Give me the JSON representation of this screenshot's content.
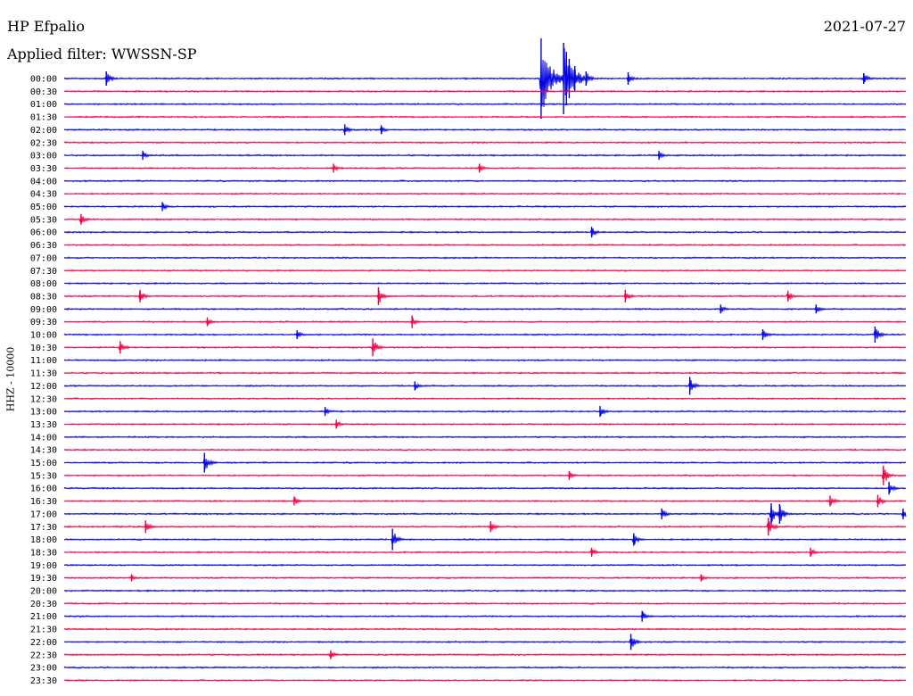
{
  "header": {
    "station": "HP Efpalio",
    "date": "2021-07-27",
    "filter": "Applied filter: WWSSN-SP"
  },
  "chart_data": {
    "type": "line",
    "title": "HP Efpalio",
    "date": "2021-07-27",
    "ylabel": "HHZ - 10000",
    "row_interval_minutes": 30,
    "trace_colors": [
      "#0000dd",
      "#ee0044"
    ],
    "row_labels": [
      "00:00",
      "00:30",
      "01:00",
      "01:30",
      "02:00",
      "02:30",
      "03:00",
      "03:30",
      "04:00",
      "04:30",
      "05:00",
      "05:30",
      "06:00",
      "06:30",
      "07:00",
      "07:30",
      "08:00",
      "08:30",
      "09:00",
      "09:30",
      "10:00",
      "10:30",
      "11:00",
      "11:30",
      "12:00",
      "12:30",
      "13:00",
      "13:30",
      "14:00",
      "14:30",
      "15:00",
      "15:30",
      "16:00",
      "16:30",
      "17:00",
      "17:30",
      "18:00",
      "18:30",
      "19:00",
      "19:30",
      "20:00",
      "20:30",
      "21:00",
      "21:30",
      "22:00",
      "22:30",
      "23:00",
      "23:30"
    ],
    "events": [
      {
        "row": 0,
        "minute": 1.5,
        "amplitude": 8
      },
      {
        "row": 0,
        "minute": 17.0,
        "amplitude": 45
      },
      {
        "row": 0,
        "minute": 17.8,
        "amplitude": 40
      },
      {
        "row": 0,
        "minute": 17.9,
        "amplitude": 30
      },
      {
        "row": 0,
        "minute": 18.0,
        "amplitude": 22
      },
      {
        "row": 0,
        "minute": 18.2,
        "amplitude": 14
      },
      {
        "row": 0,
        "minute": 18.6,
        "amplitude": 8
      },
      {
        "row": 0,
        "minute": 20.1,
        "amplitude": 7
      },
      {
        "row": 0,
        "minute": 28.5,
        "amplitude": 6
      },
      {
        "row": 4,
        "minute": 10.0,
        "amplitude": 6
      },
      {
        "row": 4,
        "minute": 11.3,
        "amplitude": 5
      },
      {
        "row": 6,
        "minute": 2.8,
        "amplitude": 5
      },
      {
        "row": 6,
        "minute": 21.2,
        "amplitude": 5
      },
      {
        "row": 7,
        "minute": 9.6,
        "amplitude": 5
      },
      {
        "row": 7,
        "minute": 14.8,
        "amplitude": 5
      },
      {
        "row": 10,
        "minute": 3.5,
        "amplitude": 5
      },
      {
        "row": 11,
        "minute": 0.6,
        "amplitude": 6
      },
      {
        "row": 12,
        "minute": 18.8,
        "amplitude": 6
      },
      {
        "row": 17,
        "minute": 2.7,
        "amplitude": 7
      },
      {
        "row": 17,
        "minute": 11.2,
        "amplitude": 10
      },
      {
        "row": 17,
        "minute": 20.0,
        "amplitude": 7
      },
      {
        "row": 17,
        "minute": 25.8,
        "amplitude": 6
      },
      {
        "row": 18,
        "minute": 23.4,
        "amplitude": 5
      },
      {
        "row": 18,
        "minute": 26.8,
        "amplitude": 5
      },
      {
        "row": 19,
        "minute": 5.1,
        "amplitude": 5
      },
      {
        "row": 19,
        "minute": 12.4,
        "amplitude": 7
      },
      {
        "row": 20,
        "minute": 8.3,
        "amplitude": 5
      },
      {
        "row": 20,
        "minute": 24.9,
        "amplitude": 6
      },
      {
        "row": 20,
        "minute": 28.9,
        "amplitude": 9
      },
      {
        "row": 21,
        "minute": 2.0,
        "amplitude": 7
      },
      {
        "row": 21,
        "minute": 11.0,
        "amplitude": 10
      },
      {
        "row": 24,
        "minute": 12.5,
        "amplitude": 5
      },
      {
        "row": 24,
        "minute": 22.3,
        "amplitude": 10
      },
      {
        "row": 26,
        "minute": 9.3,
        "amplitude": 5
      },
      {
        "row": 26,
        "minute": 19.1,
        "amplitude": 6
      },
      {
        "row": 27,
        "minute": 9.7,
        "amplitude": 5
      },
      {
        "row": 30,
        "minute": 5.0,
        "amplitude": 11
      },
      {
        "row": 31,
        "minute": 18.0,
        "amplitude": 5
      },
      {
        "row": 31,
        "minute": 29.2,
        "amplitude": 11
      },
      {
        "row": 32,
        "minute": 29.4,
        "amplitude": 7
      },
      {
        "row": 33,
        "minute": 8.2,
        "amplitude": 5
      },
      {
        "row": 33,
        "minute": 27.3,
        "amplitude": 6
      },
      {
        "row": 33,
        "minute": 29.0,
        "amplitude": 7
      },
      {
        "row": 34,
        "minute": 21.3,
        "amplitude": 6
      },
      {
        "row": 34,
        "minute": 25.2,
        "amplitude": 12
      },
      {
        "row": 34,
        "minute": 25.5,
        "amplitude": 11
      },
      {
        "row": 34,
        "minute": 29.9,
        "amplitude": 6
      },
      {
        "row": 35,
        "minute": 2.9,
        "amplitude": 7
      },
      {
        "row": 35,
        "minute": 15.2,
        "amplitude": 6
      },
      {
        "row": 35,
        "minute": 25.1,
        "amplitude": 10
      },
      {
        "row": 36,
        "minute": 11.7,
        "amplitude": 12
      },
      {
        "row": 36,
        "minute": 20.3,
        "amplitude": 7
      },
      {
        "row": 37,
        "minute": 18.8,
        "amplitude": 5
      },
      {
        "row": 37,
        "minute": 26.6,
        "amplitude": 5
      },
      {
        "row": 39,
        "minute": 2.4,
        "amplitude": 4
      },
      {
        "row": 39,
        "minute": 22.7,
        "amplitude": 4
      },
      {
        "row": 42,
        "minute": 20.6,
        "amplitude": 6
      },
      {
        "row": 44,
        "minute": 20.2,
        "amplitude": 9
      },
      {
        "row": 45,
        "minute": 9.5,
        "amplitude": 5
      }
    ]
  }
}
